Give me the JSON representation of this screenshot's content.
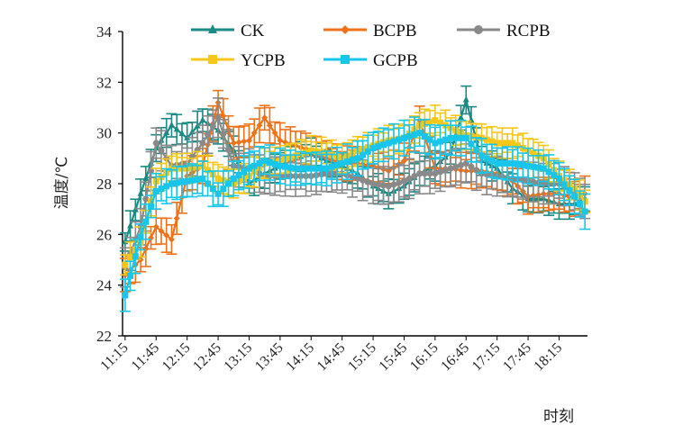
{
  "chart_data": {
    "type": "line",
    "xlabel": "时刻",
    "ylabel": "温度/℃",
    "ylim": [
      22,
      34
    ],
    "yticks": [
      22,
      24,
      26,
      28,
      30,
      32,
      34
    ],
    "x_tick_labels": [
      "11:15",
      "11:45",
      "12:15",
      "12:45",
      "13:15",
      "13:45",
      "14:15",
      "14:45",
      "15:15",
      "15:45",
      "16:15",
      "16:45",
      "17:15",
      "17:45",
      "18:15"
    ],
    "x_tick_every": 6,
    "n_points": 90,
    "legend_position": "top",
    "control_points_x": [
      0,
      3,
      6,
      9,
      12,
      15,
      18,
      21,
      24,
      27,
      30,
      33,
      36,
      39,
      42,
      45,
      48,
      51,
      54,
      57,
      60,
      63,
      66,
      69,
      72,
      75,
      78,
      81,
      84,
      87,
      89
    ],
    "series": [
      {
        "name": "CK",
        "color": "#1a8a84",
        "marker": "triangle",
        "err": 0.6,
        "values": [
          25.7,
          27.6,
          29.4,
          30.3,
          29.8,
          30.5,
          30.1,
          29.3,
          28.0,
          28.4,
          28.7,
          29.0,
          29.2,
          28.9,
          28.7,
          28.4,
          27.9,
          27.6,
          27.9,
          28.4,
          28.7,
          29.2,
          31.3,
          28.9,
          28.6,
          27.8,
          27.4,
          27.4,
          27.2,
          27.2,
          27.4
        ]
      },
      {
        "name": "BCPB",
        "color": "#ee7219",
        "marker": "diamond",
        "err": 0.7,
        "values": [
          24.4,
          25.0,
          26.3,
          25.8,
          28.3,
          28.7,
          31.2,
          29.6,
          29.7,
          30.6,
          29.7,
          29.5,
          29.3,
          29.0,
          28.8,
          28.8,
          28.7,
          28.5,
          28.9,
          30.5,
          28.6,
          28.6,
          28.5,
          28.5,
          28.4,
          28.1,
          27.5,
          27.6,
          27.6,
          27.4,
          27.6
        ]
      },
      {
        "name": "RCPB",
        "color": "#898989",
        "marker": "circle",
        "err": 0.8,
        "values": [
          24.7,
          26.3,
          29.6,
          28.7,
          28.8,
          29.6,
          30.6,
          28.7,
          28.6,
          28.3,
          28.3,
          28.3,
          28.3,
          28.4,
          28.4,
          28.2,
          28.0,
          27.9,
          28.1,
          28.4,
          28.4,
          28.6,
          28.8,
          28.4,
          28.3,
          28.2,
          28.1,
          28.0,
          28.0,
          27.7,
          27.3
        ]
      },
      {
        "name": "YCPB",
        "color": "#f5c71a",
        "marker": "square",
        "err": 0.6,
        "values": [
          24.8,
          25.7,
          28.1,
          28.6,
          28.6,
          28.7,
          28.2,
          28.0,
          28.3,
          28.8,
          28.9,
          29.1,
          29.3,
          29.2,
          29.0,
          29.3,
          29.5,
          29.7,
          29.8,
          30.3,
          30.5,
          30.2,
          29.9,
          29.8,
          29.6,
          29.6,
          29.3,
          29.0,
          28.3,
          27.8,
          27.3
        ]
      },
      {
        "name": "GCPB",
        "color": "#18c6ec",
        "marker": "square",
        "err": 0.7,
        "values": [
          23.6,
          25.9,
          27.7,
          28.0,
          28.1,
          28.2,
          27.6,
          28.2,
          28.6,
          28.9,
          28.7,
          28.6,
          28.6,
          28.6,
          28.8,
          29.0,
          29.4,
          29.6,
          29.8,
          30.0,
          29.6,
          29.8,
          29.8,
          29.1,
          28.8,
          28.8,
          28.7,
          28.6,
          28.2,
          27.5,
          26.9
        ]
      }
    ]
  }
}
